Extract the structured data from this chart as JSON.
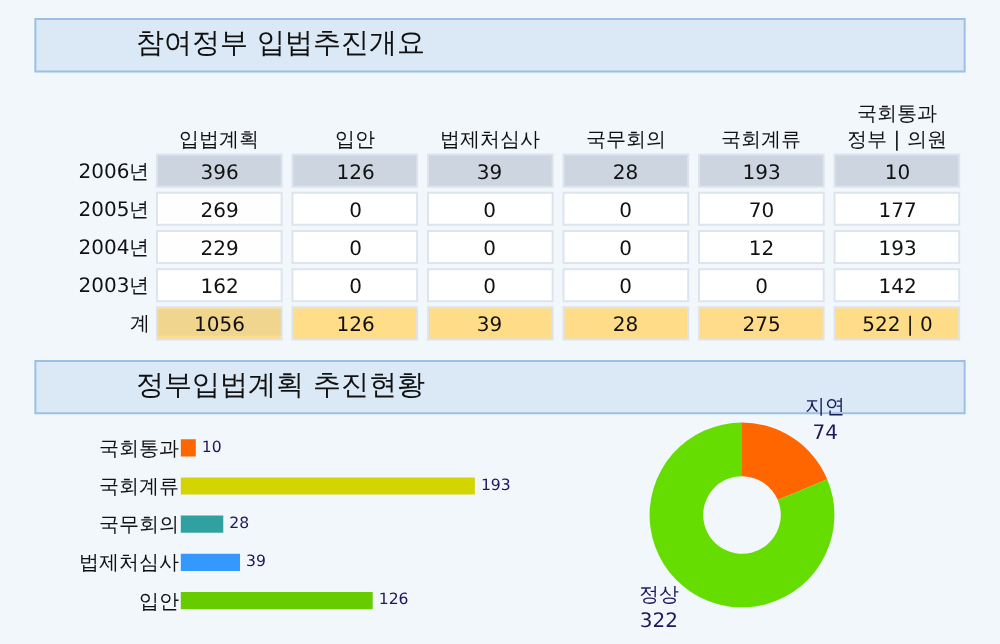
{
  "chart_data": [
    {
      "type": "heatmap",
      "title": "참여정부 입법추진개요",
      "data_labels": true,
      "categories": [
        "입법계획",
        "입안",
        "법제처심사",
        "국무회의",
        "국회계류",
        "국회통과\n정부 | 의원"
      ],
      "y_categories": [
        "2006년",
        "2005년",
        "2004년",
        "2003년",
        "계"
      ],
      "cells": [
        [
          396,
          126,
          39,
          28,
          193,
          10
        ],
        [
          269,
          0,
          0,
          0,
          70,
          177
        ],
        [
          229,
          0,
          0,
          0,
          12,
          193
        ],
        [
          162,
          0,
          0,
          0,
          0,
          142
        ],
        [
          1056,
          126,
          39,
          28,
          275,
          null
        ]
      ],
      "cell_labels": [
        [
          "396",
          "126",
          "39",
          "28",
          "193",
          "10"
        ],
        [
          "269",
          "0",
          "0",
          "0",
          "70",
          "177"
        ],
        [
          "229",
          "0",
          "0",
          "0",
          "12",
          "193"
        ],
        [
          "162",
          "0",
          "0",
          "0",
          "0",
          "142"
        ],
        [
          "1056",
          "126",
          "39",
          "28",
          "275",
          "522 | 0"
        ]
      ]
    },
    {
      "type": "bar",
      "title": "정부입법계획 추진현황",
      "orientation": "horizontal",
      "categories": [
        "국회통과",
        "국회계류",
        "국무회의",
        "법제처심사",
        "입안"
      ],
      "values": [
        10,
        193,
        28,
        39,
        126
      ],
      "colors": [
        "#ff6600",
        "#d4d400",
        "#30a0a0",
        "#3399ff",
        "#66cc00"
      ],
      "data_labels": true
    },
    {
      "type": "donut",
      "categories": [
        "지연",
        "정상"
      ],
      "values": [
        74,
        322
      ],
      "colors": [
        "#ff6600",
        "#66dd00"
      ],
      "data_labels": true
    }
  ]
}
